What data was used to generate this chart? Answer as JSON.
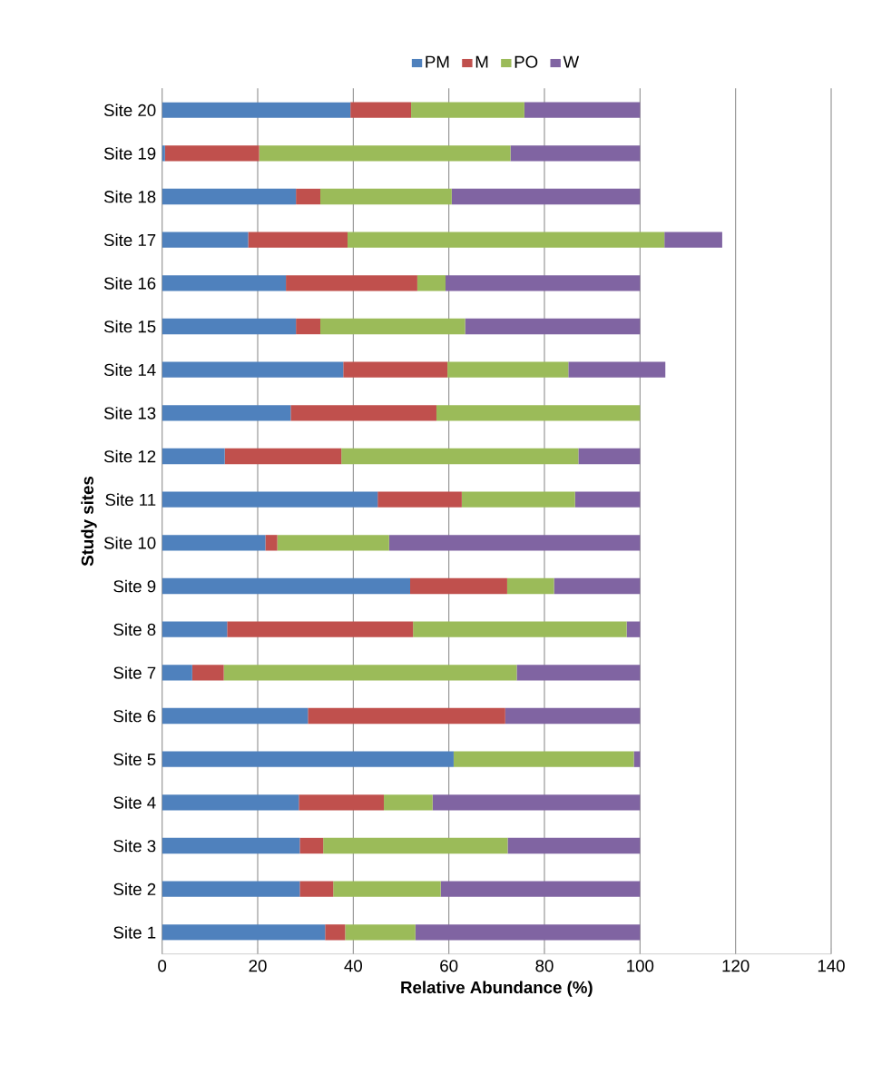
{
  "chart_data": {
    "type": "bar",
    "orientation": "horizontal",
    "stacked": true,
    "xlabel": "Relative Abundance (%)",
    "ylabel": "Study sites",
    "categories": [
      "Site 20",
      "Site 19",
      "Site 18",
      "Site 17",
      "Site 16",
      "Site 15",
      "Site 14",
      "Site 13",
      "Site 12",
      "Site 11",
      "Site 10",
      "Site 9",
      "Site 8",
      "Site 7",
      "Site 6",
      "Site 5",
      "Site 4",
      "Site 3",
      "Site 2",
      "Site 1"
    ],
    "series": [
      {
        "name": "PM",
        "color": "#4f81bd",
        "values": [
          39.4,
          0.6,
          28.0,
          18.0,
          25.9,
          28.0,
          37.9,
          26.9,
          13.1,
          45.1,
          21.6,
          51.9,
          13.6,
          6.3,
          30.5,
          61.0,
          28.6,
          28.8,
          28.8,
          34.1
        ]
      },
      {
        "name": "M",
        "color": "#c0504d",
        "values": [
          12.7,
          19.7,
          5.1,
          20.8,
          27.5,
          5.1,
          21.8,
          30.5,
          24.4,
          17.6,
          2.5,
          20.3,
          38.9,
          6.6,
          41.3,
          0,
          17.8,
          4.9,
          7.0,
          4.2
        ]
      },
      {
        "name": "PO",
        "color": "#9bbb59",
        "values": [
          23.7,
          52.6,
          27.5,
          66.3,
          5.9,
          30.3,
          25.3,
          42.6,
          49.6,
          23.7,
          23.4,
          9.8,
          44.7,
          61.3,
          0,
          37.7,
          10.2,
          38.6,
          22.5,
          14.7
        ]
      },
      {
        "name": "W",
        "color": "#8064a2",
        "values": [
          24.2,
          27.1,
          39.4,
          12.1,
          40.7,
          36.6,
          20.3,
          0,
          12.9,
          13.6,
          52.5,
          18.0,
          2.8,
          25.8,
          28.2,
          1.3,
          43.4,
          27.7,
          41.7,
          47.0
        ]
      }
    ],
    "xlim": [
      0,
      140
    ],
    "xticks": [
      0,
      20,
      40,
      60,
      80,
      100,
      120,
      140
    ],
    "grid": "x",
    "legend": "top"
  }
}
